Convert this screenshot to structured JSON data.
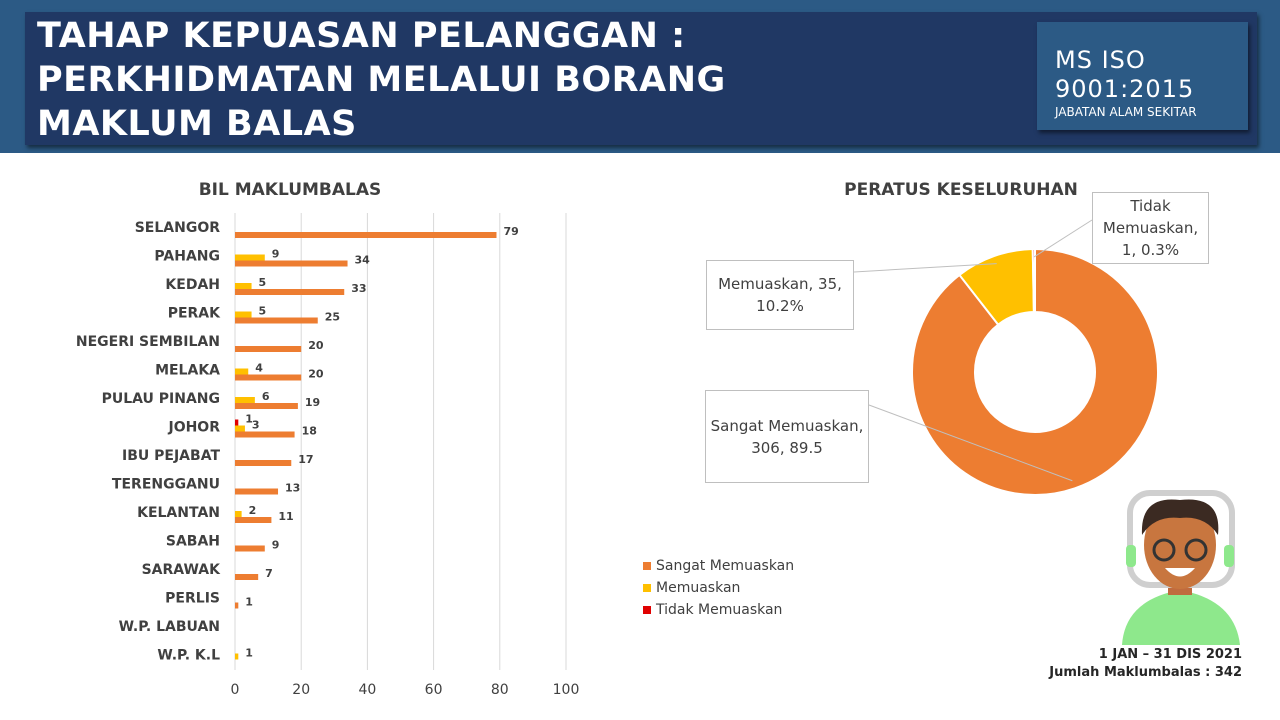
{
  "header": {
    "title_lines": [
      "TAHAP KEPUASAN PELANGGAN :",
      "PERKHIDMATAN MELALUI BORANG",
      "MAKLUM BALAS"
    ],
    "badge": [
      "MS ISO",
      "9001:2015",
      "JABATAN ALAM SEKITAR"
    ]
  },
  "chart_data": [
    {
      "type": "hbar",
      "title": "BIL MAKLUMBALAS",
      "categories": [
        "SELANGOR",
        "PAHANG",
        "KEDAH",
        "PERAK",
        "NEGERI SEMBILAN",
        "MELAKA",
        "PULAU PINANG",
        "JOHOR",
        "IBU PEJABAT",
        "TERENGGANU",
        "KELANTAN",
        "SABAH",
        "SARAWAK",
        "PERLIS",
        "W.P. LABUAN",
        "W.P. K.L"
      ],
      "series": [
        {
          "name": "Sangat Memuaskan",
          "color": "#ed7d31",
          "values": [
            79,
            34,
            33,
            25,
            20,
            20,
            19,
            18,
            17,
            13,
            11,
            9,
            7,
            1,
            null,
            null
          ]
        },
        {
          "name": "Memuaskan",
          "color": "#ffc000",
          "values": [
            null,
            9,
            5,
            5,
            null,
            4,
            6,
            3,
            null,
            null,
            2,
            null,
            null,
            null,
            null,
            1
          ]
        },
        {
          "name": "Tidak Memuaskan",
          "color": "#e00000",
          "values": [
            null,
            null,
            null,
            null,
            null,
            null,
            null,
            1,
            null,
            null,
            null,
            null,
            null,
            null,
            null,
            null
          ]
        }
      ],
      "xlim": [
        0,
        100
      ],
      "xticks": [
        0,
        20,
        40,
        60,
        80,
        100
      ],
      "grid": true
    },
    {
      "type": "donut",
      "title": "PERATUS KESELURUHAN",
      "values": [
        306,
        35,
        1
      ],
      "value_labels": [
        "Sangat Memuaskan, 306, 89.5",
        "Memuaskan, 35, 10.2%",
        "Tidak Memuaskan, 1, 0.3%"
      ],
      "colors": [
        "#ed7d31",
        "#ffc000",
        "#e00000"
      ]
    }
  ],
  "footer": {
    "period": "1 JAN – 31 DIS 2021",
    "total": "Jumlah Maklumbalas : 342"
  }
}
